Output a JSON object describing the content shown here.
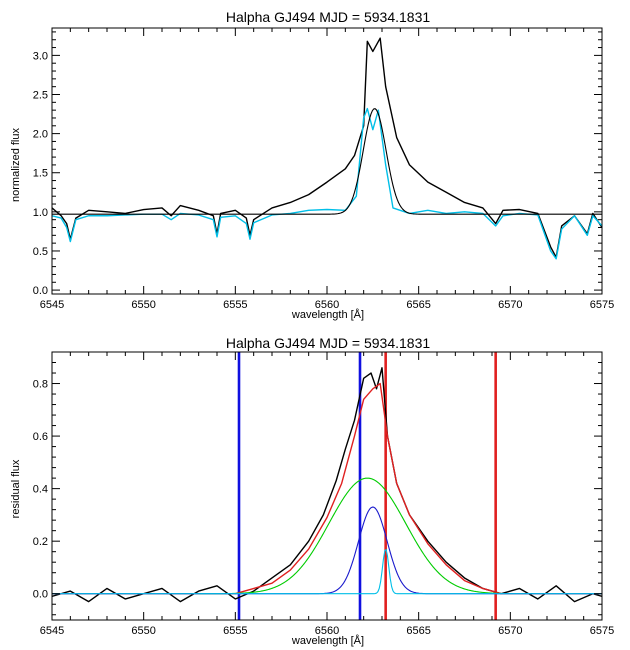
{
  "chart_data": [
    {
      "type": "line",
      "title": "Halpha GJ494 MJD = 5934.1831",
      "xlabel": "wavelength [Å]",
      "ylabel": "normalized flux",
      "xlim": [
        6545,
        6575
      ],
      "ylim": [
        -0.05,
        3.35
      ],
      "x_ticks": [
        6545,
        6550,
        6555,
        6560,
        6565,
        6570,
        6575
      ],
      "y_ticks": [
        0.0,
        0.5,
        1.0,
        1.5,
        2.0,
        2.5,
        3.0
      ],
      "y_tick_labels": [
        "0.0",
        "0.5",
        "1.0",
        "1.5",
        "2.0",
        "2.5",
        "3.0"
      ],
      "grid": false,
      "series": [
        {
          "color": "#000000",
          "points": [
            [
              6545.0,
              1.05
            ],
            [
              6545.5,
              0.95
            ],
            [
              6545.8,
              0.85
            ],
            [
              6546.0,
              0.65
            ],
            [
              6546.3,
              0.92
            ],
            [
              6547.0,
              1.02
            ],
            [
              6548.0,
              1.0
            ],
            [
              6549.0,
              0.98
            ],
            [
              6550.0,
              1.03
            ],
            [
              6551.0,
              1.05
            ],
            [
              6551.5,
              0.95
            ],
            [
              6552.0,
              1.08
            ],
            [
              6553.0,
              1.02
            ],
            [
              6553.8,
              0.95
            ],
            [
              6554.0,
              0.72
            ],
            [
              6554.2,
              0.98
            ],
            [
              6555.0,
              1.02
            ],
            [
              6555.6,
              0.92
            ],
            [
              6555.8,
              0.7
            ],
            [
              6556.0,
              0.9
            ],
            [
              6557.0,
              1.05
            ],
            [
              6558.0,
              1.12
            ],
            [
              6559.0,
              1.22
            ],
            [
              6560.0,
              1.38
            ],
            [
              6561.0,
              1.55
            ],
            [
              6561.5,
              1.72
            ],
            [
              6562.0,
              2.1
            ],
            [
              6562.2,
              3.18
            ],
            [
              6562.5,
              3.05
            ],
            [
              6562.9,
              3.22
            ],
            [
              6563.2,
              2.6
            ],
            [
              6563.8,
              1.95
            ],
            [
              6564.5,
              1.6
            ],
            [
              6565.5,
              1.38
            ],
            [
              6566.5,
              1.25
            ],
            [
              6567.5,
              1.12
            ],
            [
              6568.5,
              1.05
            ],
            [
              6569.2,
              0.85
            ],
            [
              6569.6,
              1.02
            ],
            [
              6570.5,
              1.03
            ],
            [
              6571.5,
              0.98
            ],
            [
              6572.2,
              0.55
            ],
            [
              6572.5,
              0.42
            ],
            [
              6572.8,
              0.82
            ],
            [
              6573.5,
              0.95
            ],
            [
              6574.2,
              0.72
            ],
            [
              6574.5,
              0.98
            ],
            [
              6575.0,
              0.8
            ]
          ]
        },
        {
          "color": "#00bfe8",
          "points": [
            [
              6545.0,
              0.95
            ],
            [
              6545.5,
              0.92
            ],
            [
              6545.8,
              0.8
            ],
            [
              6546.0,
              0.62
            ],
            [
              6546.3,
              0.9
            ],
            [
              6547.0,
              0.95
            ],
            [
              6548.0,
              0.95
            ],
            [
              6549.0,
              0.96
            ],
            [
              6550.0,
              0.97
            ],
            [
              6551.0,
              0.97
            ],
            [
              6551.5,
              0.9
            ],
            [
              6552.0,
              0.98
            ],
            [
              6553.0,
              0.96
            ],
            [
              6553.8,
              0.9
            ],
            [
              6554.0,
              0.68
            ],
            [
              6554.2,
              0.93
            ],
            [
              6555.0,
              0.95
            ],
            [
              6555.6,
              0.85
            ],
            [
              6555.8,
              0.65
            ],
            [
              6556.0,
              0.86
            ],
            [
              6557.0,
              0.96
            ],
            [
              6558.0,
              0.98
            ],
            [
              6559.0,
              1.02
            ],
            [
              6560.0,
              1.03
            ],
            [
              6561.0,
              1.02
            ],
            [
              6561.6,
              1.2
            ],
            [
              6562.0,
              2.2
            ],
            [
              6562.2,
              2.32
            ],
            [
              6562.5,
              2.05
            ],
            [
              6562.8,
              2.3
            ],
            [
              6563.2,
              1.6
            ],
            [
              6563.6,
              1.05
            ],
            [
              6564.5,
              0.98
            ],
            [
              6565.5,
              1.02
            ],
            [
              6566.5,
              0.98
            ],
            [
              6567.5,
              1.0
            ],
            [
              6568.5,
              0.98
            ],
            [
              6569.2,
              0.82
            ],
            [
              6569.6,
              0.95
            ],
            [
              6570.5,
              0.98
            ],
            [
              6571.5,
              0.96
            ],
            [
              6572.2,
              0.5
            ],
            [
              6572.5,
              0.4
            ],
            [
              6572.8,
              0.78
            ],
            [
              6573.5,
              0.95
            ],
            [
              6574.2,
              0.7
            ],
            [
              6574.5,
              0.95
            ],
            [
              6575.0,
              0.82
            ]
          ]
        },
        {
          "color": "#000000",
          "gaussian": {
            "baseline": 0.97,
            "amplitude": 1.35,
            "center": 6562.6,
            "sigma": 0.62,
            "x0": 6545,
            "x1": 6575
          }
        }
      ]
    },
    {
      "type": "line",
      "title": "Halpha GJ494 MJD = 5934.1831",
      "xlabel": "wavelength [Å]",
      "ylabel": "residual flux",
      "xlim": [
        6545,
        6575
      ],
      "ylim": [
        -0.1,
        0.92
      ],
      "x_ticks": [
        6545,
        6550,
        6555,
        6560,
        6565,
        6570,
        6575
      ],
      "y_ticks": [
        0.0,
        0.2,
        0.4,
        0.6,
        0.8
      ],
      "y_tick_labels": [
        "0.0",
        "0.2",
        "0.4",
        "0.6",
        "0.8"
      ],
      "grid": false,
      "vertical_lines": [
        {
          "x": 6555.2,
          "color": "#1010e0"
        },
        {
          "x": 6561.8,
          "color": "#1010e0"
        },
        {
          "x": 6563.2,
          "color": "#e02020"
        },
        {
          "x": 6569.2,
          "color": "#e02020"
        }
      ],
      "series": [
        {
          "color": "#000000",
          "points": [
            [
              6545.0,
              -0.01
            ],
            [
              6546.0,
              0.01
            ],
            [
              6547.0,
              -0.03
            ],
            [
              6548.0,
              0.02
            ],
            [
              6549.0,
              -0.02
            ],
            [
              6550.0,
              0.0
            ],
            [
              6551.0,
              0.02
            ],
            [
              6552.0,
              -0.03
            ],
            [
              6553.0,
              0.01
            ],
            [
              6554.0,
              0.03
            ],
            [
              6555.0,
              -0.02
            ],
            [
              6556.0,
              0.01
            ],
            [
              6557.0,
              0.06
            ],
            [
              6558.0,
              0.11
            ],
            [
              6559.0,
              0.2
            ],
            [
              6559.8,
              0.3
            ],
            [
              6560.5,
              0.43
            ],
            [
              6561.0,
              0.55
            ],
            [
              6561.5,
              0.66
            ],
            [
              6562.0,
              0.82
            ],
            [
              6562.4,
              0.84
            ],
            [
              6562.7,
              0.78
            ],
            [
              6563.0,
              0.86
            ],
            [
              6563.3,
              0.6
            ],
            [
              6563.8,
              0.42
            ],
            [
              6564.5,
              0.3
            ],
            [
              6565.5,
              0.2
            ],
            [
              6566.5,
              0.12
            ],
            [
              6567.5,
              0.06
            ],
            [
              6568.5,
              0.02
            ],
            [
              6569.5,
              0.0
            ],
            [
              6570.5,
              0.02
            ],
            [
              6571.5,
              -0.02
            ],
            [
              6572.5,
              0.03
            ],
            [
              6573.5,
              -0.03
            ],
            [
              6574.5,
              0.0
            ],
            [
              6575.0,
              -0.01
            ]
          ]
        },
        {
          "color": "#e02020",
          "points": [
            [
              6545.0,
              0.0
            ],
            [
              6555.0,
              0.0
            ],
            [
              6557.0,
              0.04
            ],
            [
              6558.0,
              0.09
            ],
            [
              6559.0,
              0.17
            ],
            [
              6560.0,
              0.29
            ],
            [
              6560.8,
              0.42
            ],
            [
              6561.5,
              0.6
            ],
            [
              6562.0,
              0.74
            ],
            [
              6562.5,
              0.78
            ],
            [
              6562.9,
              0.8
            ],
            [
              6563.3,
              0.6
            ],
            [
              6563.8,
              0.42
            ],
            [
              6564.5,
              0.3
            ],
            [
              6565.5,
              0.19
            ],
            [
              6566.5,
              0.11
            ],
            [
              6567.5,
              0.05
            ],
            [
              6568.5,
              0.02
            ],
            [
              6569.5,
              0.0
            ],
            [
              6575.0,
              0.0
            ]
          ]
        },
        {
          "color": "#00cc00",
          "gaussian": {
            "baseline": 0.0,
            "amplitude": 0.44,
            "center": 6562.2,
            "sigma": 2.1,
            "x0": 6553.0,
            "x1": 6569.5
          }
        },
        {
          "color": "#1a1acc",
          "gaussian": {
            "baseline": 0.0,
            "amplitude": 0.33,
            "center": 6562.5,
            "sigma": 0.78,
            "x0": 6545,
            "x1": 6575
          }
        },
        {
          "color": "#00bfe8",
          "gaussian": {
            "baseline": 0.0,
            "amplitude": 0.17,
            "center": 6563.2,
            "sigma": 0.17,
            "x0": 6545,
            "x1": 6575
          }
        }
      ]
    }
  ]
}
